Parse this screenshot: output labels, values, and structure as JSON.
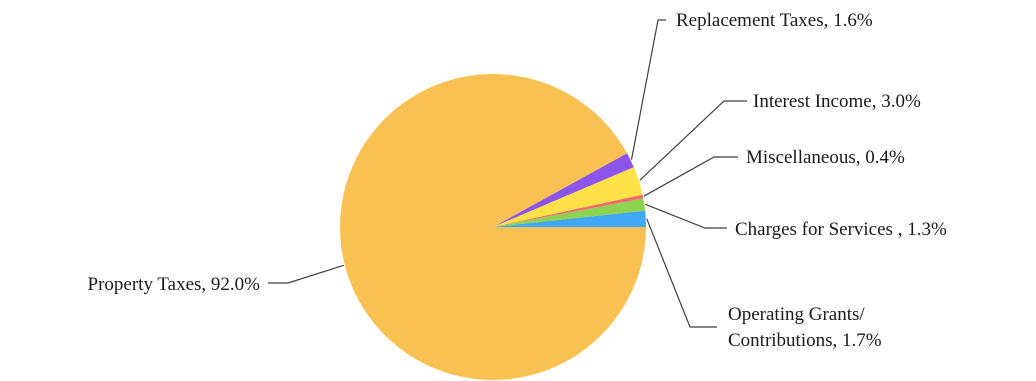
{
  "chart_data": {
    "type": "pie",
    "title": "",
    "unit": "%",
    "slices": [
      {
        "name": "Operating Grants/ Contributions",
        "value": 1.7,
        "label_lines": [
          "Operating Grants/",
          "Contributions, 1.7%"
        ],
        "color": "#3fa9f5"
      },
      {
        "name": "Charges for Services",
        "value": 1.3,
        "label_lines": [
          "Charges for Services , 1.3%"
        ],
        "color": "#8dd34f"
      },
      {
        "name": "Miscellaneous",
        "value": 0.4,
        "label_lines": [
          "Miscellaneous, 0.4%"
        ],
        "color": "#f26b6b"
      },
      {
        "name": "Interest Income",
        "value": 3.0,
        "label_lines": [
          "Interest Income, 3.0%"
        ],
        "color": "#fde147"
      },
      {
        "name": "Replacement Taxes",
        "value": 1.6,
        "label_lines": [
          "Replacement Taxes, 1.6%"
        ],
        "color": "#8b55ec"
      },
      {
        "name": "Property Taxes",
        "value": 92.0,
        "label_lines": [
          "Property Taxes, 92.0%"
        ],
        "color": "#f9c052"
      }
    ],
    "legend": "none (leader-line labels)"
  }
}
